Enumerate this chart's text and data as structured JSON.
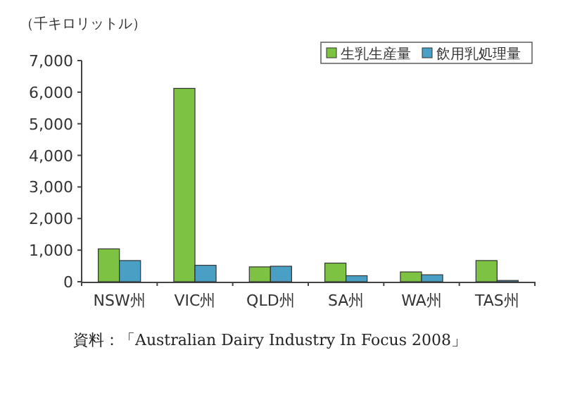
{
  "chart_data": {
    "type": "bar",
    "ylabel": "（千キロリットル）",
    "categories": [
      "NSW州",
      "VIC州",
      "QLD州",
      "SA州",
      "WA州",
      "TAS州"
    ],
    "series": [
      {
        "name": "生乳生産量",
        "color": "#7dc242",
        "values": [
          1040,
          6120,
          470,
          590,
          310,
          670
        ]
      },
      {
        "name": "飲用乳処理量",
        "color": "#4a9fc4",
        "values": [
          670,
          520,
          490,
          190,
          220,
          40
        ]
      }
    ],
    "ylim": [
      0,
      7000
    ],
    "yticks": [
      {
        "value": 0,
        "label": "0"
      },
      {
        "value": 1000,
        "label": "1,000"
      },
      {
        "value": 2000,
        "label": "2,000"
      },
      {
        "value": 3000,
        "label": "3,000"
      },
      {
        "value": 4000,
        "label": "4,000"
      },
      {
        "value": 5000,
        "label": "5,000"
      },
      {
        "value": 6000,
        "label": "6,000"
      },
      {
        "value": 7000,
        "label": "7,000"
      }
    ],
    "grid": false,
    "legend": "top right",
    "annotations": [
      "資料：「Australian Dairy Industry In Focus 2008」"
    ]
  }
}
